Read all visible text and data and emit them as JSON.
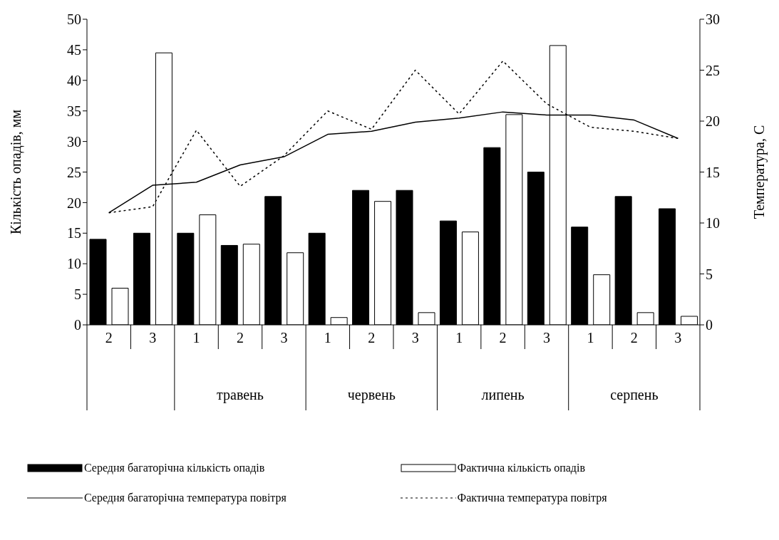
{
  "chart_data": {
    "type": "bar",
    "ylabel": "Кількість опадів, мм",
    "y2label": "Температура, С",
    "categories": [
      "2",
      "3",
      "1",
      "2",
      "3",
      "1",
      "2",
      "3",
      "1",
      "2",
      "3",
      "1",
      "2",
      "3"
    ],
    "annotations": [
      "травень",
      "червень",
      "липень",
      "серпень"
    ],
    "ylim": [
      0,
      50
    ],
    "yticks": [
      0,
      5,
      10,
      15,
      20,
      25,
      30,
      35,
      40,
      45,
      50
    ],
    "y2lim": [
      0,
      30
    ],
    "y2ticks": [
      0,
      5,
      10,
      15,
      20,
      25,
      30
    ],
    "grid": false,
    "legend": "bottom",
    "marker": "none",
    "series": [
      {
        "name": "Середня багаторічна кількість опадів",
        "color": "#000000",
        "values": [
          14,
          15,
          15,
          13,
          21,
          15,
          22,
          22,
          17,
          29,
          25,
          16,
          21,
          19
        ]
      },
      {
        "name": "Фактична кількість опадів",
        "color": "#ffffff",
        "values": [
          6,
          44.5,
          18,
          13.2,
          11.8,
          1.2,
          20.2,
          2,
          15.2,
          34.4,
          45.7,
          8.2,
          2,
          1.4
        ]
      },
      {
        "name": "Середня багаторічна температура повітря",
        "type": "line",
        "axis": "y2",
        "line_style": "solid",
        "color": "#000000",
        "values": [
          11,
          13.7,
          14,
          15.7,
          16.5,
          18.7,
          19,
          19.9,
          20.3,
          20.9,
          20.6,
          20.6,
          20.1,
          18.3
        ]
      },
      {
        "name": "Фактична температура повітря",
        "type": "line",
        "axis": "y2",
        "line_style": "dotted",
        "color": "#000000",
        "values": [
          11,
          11.6,
          19.1,
          13.6,
          16.6,
          21,
          19.2,
          25,
          20.7,
          25.9,
          21.7,
          19.4,
          19,
          18.3
        ]
      }
    ]
  }
}
